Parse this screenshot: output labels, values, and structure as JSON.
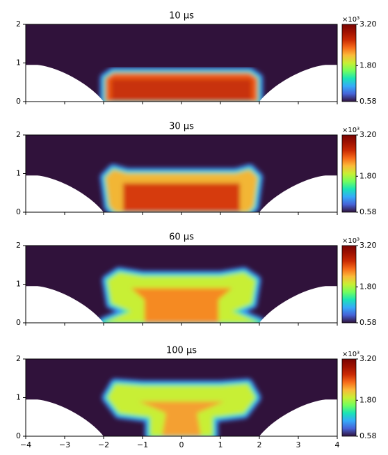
{
  "chart_data": [
    {
      "type": "heatmap",
      "title": "10 μs",
      "xlim": [
        -4,
        4
      ],
      "ylim": [
        0,
        2
      ],
      "xticks": [
        -4,
        -3,
        -2,
        -1,
        0,
        1,
        2,
        3,
        4
      ],
      "yticks": [
        0,
        1,
        2
      ],
      "colorbar": {
        "lim": [
          0.58,
          3.2
        ],
        "ticks": [
          0.58,
          {
            "value": 1.8,
            "label": "1.80"
          },
          {
            "value": 3.2,
            "label": "3.20"
          }
        ],
        "multiplier": "×10³",
        "colormap": "turbo"
      }
    },
    {
      "type": "heatmap",
      "title": "30 μs",
      "xlim": [
        -4,
        4
      ],
      "ylim": [
        0,
        2
      ],
      "xticks": [
        -4,
        -3,
        -2,
        -1,
        0,
        1,
        2,
        3,
        4
      ],
      "yticks": [
        0,
        1,
        2
      ],
      "colorbar": {
        "lim": [
          0.58,
          3.2
        ],
        "ticks": [
          0.58,
          {
            "value": 1.8,
            "label": "1.80"
          },
          {
            "value": 3.2,
            "label": "3.20"
          }
        ],
        "multiplier": "×10³",
        "colormap": "turbo"
      }
    },
    {
      "type": "heatmap",
      "title": "60 μs",
      "xlim": [
        -4,
        4
      ],
      "ylim": [
        0,
        2
      ],
      "xticks": [
        -4,
        -3,
        -2,
        -1,
        0,
        1,
        2,
        3,
        4
      ],
      "yticks": [
        0,
        1,
        2
      ],
      "colorbar": {
        "lim": [
          0.58,
          3.2
        ],
        "ticks": [
          0.58,
          {
            "value": 1.8,
            "label": "1.80"
          },
          {
            "value": 3.2,
            "label": "3.20"
          }
        ],
        "multiplier": "×10³",
        "colormap": "turbo"
      }
    },
    {
      "type": "heatmap",
      "title": "100 μs",
      "xlim": [
        -4,
        4
      ],
      "ylim": [
        0,
        2
      ],
      "xticks": [
        {
          "value": -4,
          "label": "−4"
        },
        {
          "value": -3,
          "label": "−3"
        },
        {
          "value": -2,
          "label": "−2"
        },
        {
          "value": -1,
          "label": "−1"
        },
        0,
        1,
        2,
        3,
        4
      ],
      "yticks": [
        0,
        1,
        2
      ],
      "colorbar": {
        "lim": [
          0.58,
          3.2
        ],
        "ticks": [
          0.58,
          {
            "value": 1.8,
            "label": "1.80"
          },
          {
            "value": 3.2,
            "label": "3.20"
          }
        ],
        "multiplier": "×10³",
        "colormap": "turbo"
      }
    }
  ]
}
